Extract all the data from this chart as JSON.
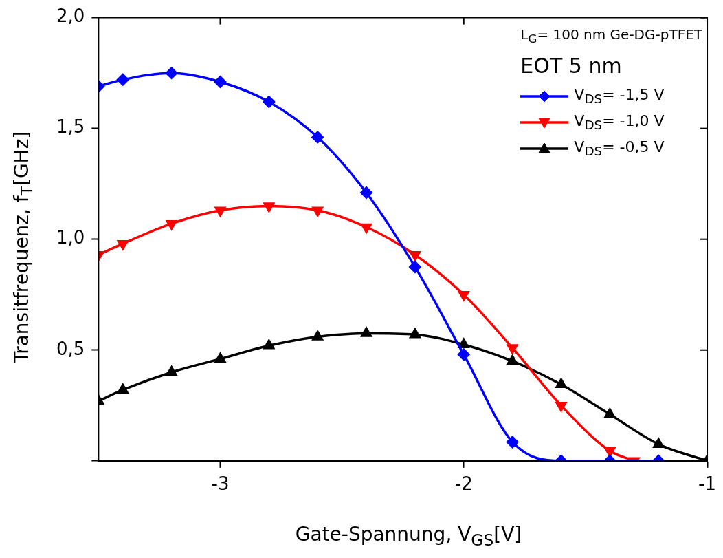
{
  "chart_data": {
    "type": "line",
    "xlabel": "Gate-Spannung, V$_{GS}$[V]",
    "ylabel": "Transitfrequenz, f$_{T}$[GHz]",
    "legend_title": "EOT 5 nm",
    "annotations": [
      "L$_{G}$= 100 nm Ge-DG-pTFET"
    ],
    "x": [
      -3.5,
      -3.4,
      -3.2,
      -3.0,
      -2.8,
      -2.6,
      -2.4,
      -2.2,
      -2.0,
      -1.8,
      -1.6,
      -1.4,
      -1.2,
      -1.0
    ],
    "xlim": [
      -3.5,
      -1
    ],
    "xticks": [
      {
        "value": -3,
        "label": "-3"
      },
      {
        "value": -2,
        "label": "-2"
      },
      {
        "value": -1,
        "label": "-1"
      }
    ],
    "ylim": [
      0,
      2
    ],
    "yticks": [
      {
        "value": 0,
        "label": null
      },
      {
        "value": 0.5,
        "label": "0,5"
      },
      {
        "value": 1,
        "label": "1,0"
      },
      {
        "value": 1.5,
        "label": "1,5"
      },
      {
        "value": 2,
        "label": "2,0"
      }
    ],
    "grid": false,
    "legend": "top right",
    "line_style": "solid",
    "series": [
      {
        "name": "V$_{DS}$= -1,5 V",
        "color": "#0000ff",
        "marker": "diamond",
        "x": [
          -3.5,
          -3.4,
          -3.2,
          -3.0,
          -2.8,
          -2.6,
          -2.4,
          -2.2,
          -2.0,
          -1.8,
          -1.6,
          -1.4,
          -1.2
        ],
        "values": [
          1.69,
          1.72,
          1.75,
          1.71,
          1.62,
          1.46,
          1.21,
          0.875,
          0.48,
          0.085,
          0,
          0,
          0
        ]
      },
      {
        "name": "V$_{DS}$= -1,0 V",
        "color": "#ff0000",
        "marker": "triangle-down",
        "x": [
          -3.5,
          -3.4,
          -3.2,
          -3.0,
          -2.8,
          -2.6,
          -2.4,
          -2.2,
          -2.0,
          -1.8,
          -1.6,
          -1.4,
          -1.3
        ],
        "values": [
          0.93,
          0.98,
          1.07,
          1.13,
          1.15,
          1.13,
          1.055,
          0.93,
          0.75,
          0.51,
          0.25,
          0.045,
          0
        ]
      },
      {
        "name": "V$_{DS}$= -0,5 V",
        "color": "#000000",
        "marker": "triangle",
        "values": [
          0.27,
          0.32,
          0.4,
          0.46,
          0.52,
          0.56,
          0.575,
          0.57,
          0.525,
          0.45,
          0.345,
          0.21,
          0.075,
          0
        ]
      }
    ]
  }
}
